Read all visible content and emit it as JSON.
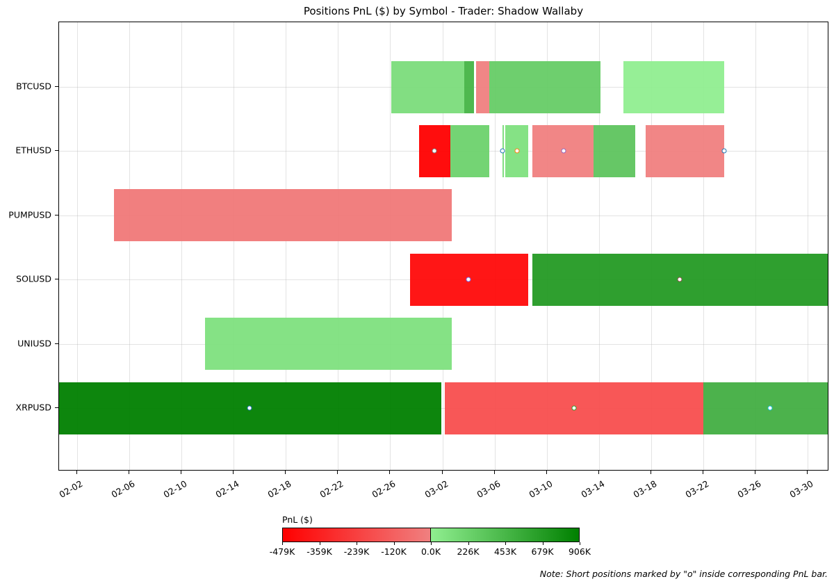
{
  "title": "Positions PnL ($) by Symbol - Trader: Shadow Wallaby",
  "note": "Note: Short positions marked by \"o\" inside corresponding PnL bar.",
  "colorbar": {
    "label": "PnL ($)",
    "ticks": [
      "-479K",
      "-359K",
      "-239K",
      "-120K",
      "0.0K",
      "226K",
      "453K",
      "679K",
      "906K"
    ],
    "neg_colors": [
      "#ff0000",
      "#f08080"
    ],
    "pos_colors": [
      "#90ee90",
      "#008000"
    ]
  },
  "chart_data": {
    "type": "gantt-bar",
    "title": "Positions PnL ($) by Symbol - Trader: Shadow Wallaby",
    "xlabel": "",
    "ylabel": "",
    "x_ticks": [
      "02-02",
      "02-06",
      "02-10",
      "02-14",
      "02-18",
      "02-22",
      "02-26",
      "03-02",
      "03-06",
      "03-10",
      "03-14",
      "03-18",
      "03-22",
      "03-26",
      "03-30"
    ],
    "x_range_days_from_0202": [
      -1.4,
      57.6
    ],
    "categories": [
      "BTCUSD",
      "ETHUSD",
      "PUMPUSD",
      "SOLUSD",
      "UNIUSD",
      "XRPUSD"
    ],
    "grid": true,
    "legend": "colorbar bottom",
    "colorbar_range": [
      -479000,
      906000
    ],
    "rows": [
      {
        "symbol": "BTCUSD",
        "segments": [
          {
            "start": 24.1,
            "end": 29.7,
            "pnl": 200000,
            "color": "#7bdc7b",
            "short": false
          },
          {
            "start": 29.7,
            "end": 30.4,
            "pnl": 500000,
            "color": "#46b446",
            "short": false
          },
          {
            "start": 30.6,
            "end": 31.6,
            "pnl": -40000,
            "color": "#f08080",
            "short": false
          },
          {
            "start": 31.6,
            "end": 40.1,
            "pnl": 300000,
            "color": "#66cc66",
            "short": false
          },
          {
            "start": 41.9,
            "end": 49.6,
            "pnl": 60000,
            "color": "#90ee90",
            "short": false
          }
        ]
      },
      {
        "symbol": "ETHUSD",
        "segments": [
          {
            "start": 26.2,
            "end": 28.6,
            "pnl": -479000,
            "color": "#ff0000",
            "short": true,
            "marker": 27.4,
            "marker_color": "#7f7f7f"
          },
          {
            "start": 28.6,
            "end": 31.6,
            "pnl": 250000,
            "color": "#6dd26d",
            "short": false
          },
          {
            "start": 32.6,
            "end": 32.7,
            "pnl": 150000,
            "color": "#7bdc7b",
            "short": true,
            "marker": 32.6,
            "marker_color": "#1f77b4"
          },
          {
            "start": 32.8,
            "end": 34.6,
            "pnl": 150000,
            "color": "#7ee07e",
            "short": true,
            "marker": 33.7,
            "marker_color": "#ff7f0e"
          },
          {
            "start": 34.9,
            "end": 39.6,
            "pnl": -40000,
            "color": "#f08080",
            "short": true,
            "marker": 37.3,
            "marker_color": "#9467bd"
          },
          {
            "start": 39.6,
            "end": 42.8,
            "pnl": 350000,
            "color": "#5ec45e",
            "short": false
          },
          {
            "start": 43.6,
            "end": 49.6,
            "pnl": -40000,
            "color": "#f08080",
            "short": true,
            "marker": 49.6,
            "marker_color": "#1f77b4"
          }
        ]
      },
      {
        "symbol": "PUMPUSD",
        "segments": [
          {
            "start": 2.8,
            "end": 28.7,
            "pnl": -60000,
            "color": "#f07878",
            "short": false
          }
        ]
      },
      {
        "symbol": "SOLUSD",
        "segments": [
          {
            "start": 25.5,
            "end": 34.6,
            "pnl": -460000,
            "color": "#ff0a0a",
            "short": true,
            "marker": 30.0,
            "marker_color": "#7b68ee"
          },
          {
            "start": 34.9,
            "end": 57.6,
            "pnl": 760000,
            "color": "#249a24",
            "short": true,
            "marker": 46.2,
            "marker_color": "#8c564b"
          }
        ]
      },
      {
        "symbol": "UNIUSD",
        "segments": [
          {
            "start": 9.8,
            "end": 28.7,
            "pnl": 180000,
            "color": "#7ee07e",
            "short": false
          }
        ]
      },
      {
        "symbol": "XRPUSD",
        "segments": [
          {
            "start": -1.4,
            "end": 27.9,
            "pnl": 906000,
            "color": "#008000",
            "short": true,
            "marker": 13.2,
            "marker_color": "#1f77b4"
          },
          {
            "start": 28.2,
            "end": 48.0,
            "pnl": -200000,
            "color": "#f84e4e",
            "short": true,
            "marker": 38.1,
            "marker_color": "#2ca02c"
          },
          {
            "start": 48.0,
            "end": 57.6,
            "pnl": 500000,
            "color": "#42ae42",
            "short": true,
            "marker": 53.1,
            "marker_color": "#17becf"
          }
        ]
      }
    ]
  }
}
